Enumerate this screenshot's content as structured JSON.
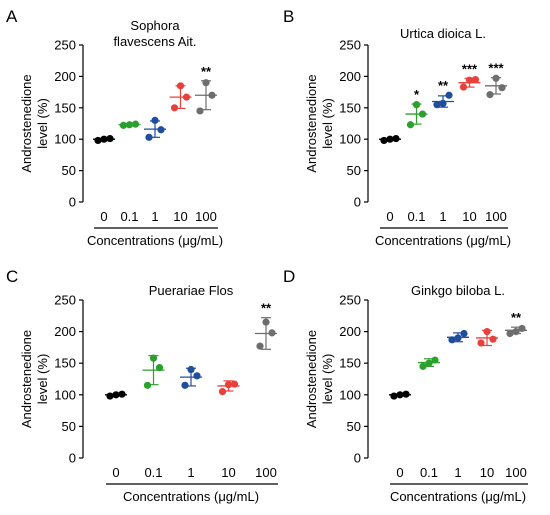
{
  "chart_data": [
    {
      "panel_label": "A",
      "type": "scatter",
      "title_lines": [
        "Sophora",
        "flavescens Ait."
      ],
      "ylabel_lines": [
        "Androstenedione",
        "level (%)"
      ],
      "xlabel": "Concentrations (μg/mL)",
      "categories": [
        "0",
        "0.1",
        "1",
        "10",
        "100"
      ],
      "yticks": [
        "0",
        "50",
        "100",
        "150",
        "200",
        "250"
      ],
      "ylim": [
        0,
        250
      ],
      "colors": [
        "#000000",
        "#2ca02c",
        "#1f4e9c",
        "#e8413c",
        "#6e6e6e"
      ],
      "points": [
        [
          98,
          100,
          101
        ],
        [
          122,
          123,
          124
        ],
        [
          103,
          115,
          130
        ],
        [
          150,
          167,
          185
        ],
        [
          145,
          170,
          190
        ]
      ],
      "mean": [
        100,
        123,
        116,
        167,
        170
      ],
      "sd": [
        1.5,
        1,
        13,
        18,
        23
      ],
      "significance": [
        "",
        "",
        "",
        "",
        "**"
      ]
    },
    {
      "panel_label": "B",
      "type": "scatter",
      "title_lines": [
        "Urtica dioica L."
      ],
      "ylabel_lines": [
        "Androstenedione",
        "level (%)"
      ],
      "xlabel": "Concentrations (μg/mL)",
      "categories": [
        "0",
        "0.1",
        "1",
        "10",
        "100"
      ],
      "yticks": [
        "0",
        "50",
        "100",
        "150",
        "200",
        "250"
      ],
      "ylim": [
        0,
        250
      ],
      "colors": [
        "#000000",
        "#2ca02c",
        "#1f4e9c",
        "#e8413c",
        "#6e6e6e"
      ],
      "points": [
        [
          98,
          100,
          101
        ],
        [
          123,
          140,
          155
        ],
        [
          155,
          157,
          170
        ],
        [
          183,
          194,
          195
        ],
        [
          171,
          182,
          197
        ]
      ],
      "mean": [
        100,
        140,
        160,
        190,
        185
      ],
      "sd": [
        1.5,
        16,
        9,
        7,
        13
      ],
      "significance": [
        "",
        "*",
        "**",
        "***",
        "***"
      ]
    },
    {
      "panel_label": "C",
      "type": "scatter",
      "title_lines": [
        "Puerariae Flos"
      ],
      "ylabel_lines": [
        "Androstenedione",
        "level (%)"
      ],
      "xlabel": "Concentrations (μg/mL)",
      "categories": [
        "0",
        "0.1",
        "1",
        "10",
        "100"
      ],
      "yticks": [
        "0",
        "50",
        "100",
        "150",
        "200",
        "250"
      ],
      "ylim": [
        0,
        250
      ],
      "colors": [
        "#000000",
        "#2ca02c",
        "#1f4e9c",
        "#e8413c",
        "#6e6e6e"
      ],
      "points": [
        [
          98,
          100,
          101
        ],
        [
          115,
          143,
          158
        ],
        [
          115,
          130,
          140
        ],
        [
          105,
          116,
          117
        ],
        [
          177,
          198,
          215
        ]
      ],
      "mean": [
        100,
        139,
        128,
        114,
        197
      ],
      "sd": [
        1.5,
        23,
        14,
        8,
        25
      ],
      "significance": [
        "",
        "",
        "",
        "",
        "**"
      ]
    },
    {
      "panel_label": "D",
      "type": "scatter",
      "title_lines": [
        "Ginkgo biloba L."
      ],
      "ylabel_lines": [
        "Androstenedione",
        "level (%)"
      ],
      "xlabel": "Concentrations (μg/mL)",
      "categories": [
        "0",
        "0.1",
        "1",
        "10",
        "100"
      ],
      "yticks": [
        "0",
        "50",
        "100",
        "150",
        "200",
        "250"
      ],
      "ylim": [
        0,
        250
      ],
      "colors": [
        "#000000",
        "#2ca02c",
        "#1f4e9c",
        "#e8413c",
        "#6e6e6e"
      ],
      "points": [
        [
          98,
          100,
          101
        ],
        [
          145,
          150,
          155
        ],
        [
          187,
          190,
          197
        ],
        [
          182,
          188,
          200
        ],
        [
          197,
          200,
          205
        ]
      ],
      "mean": [
        100,
        151,
        191,
        190,
        202
      ],
      "sd": [
        1.5,
        6,
        7,
        12,
        5
      ],
      "significance": [
        "",
        "",
        "",
        "",
        "**"
      ]
    }
  ]
}
